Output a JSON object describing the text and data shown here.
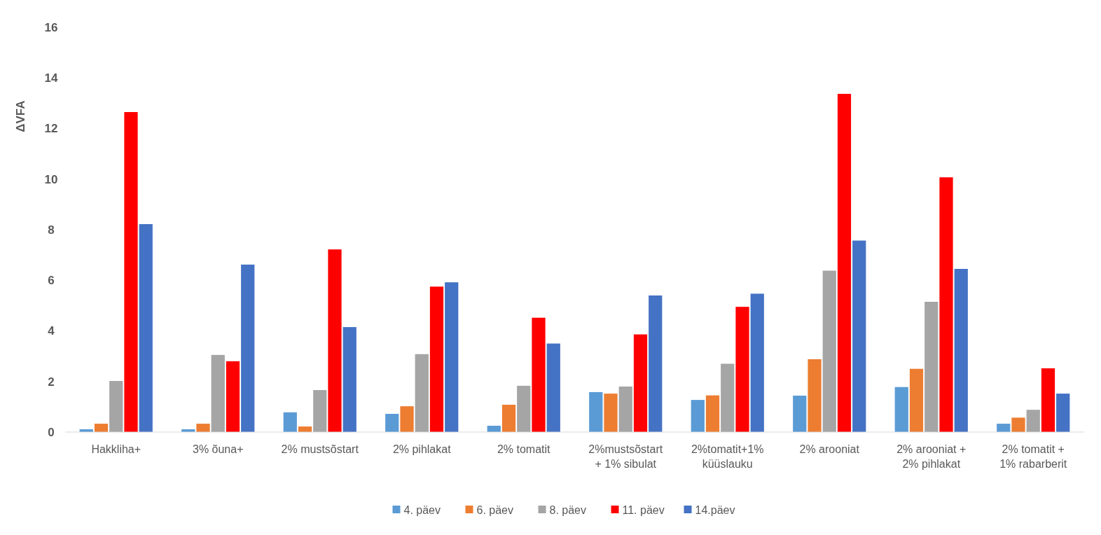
{
  "chart_data": {
    "type": "bar",
    "ylabel": "ΔVFA",
    "categories": [
      "Hakkliha+",
      "3% õuna+",
      "2% mustsõstart",
      "2% pihlakat",
      "2% tomatit",
      "2%mustsõstart + 1% sibulat",
      "2%tomatit+1% küüslauku",
      "2% arooniat",
      "2% arooniat + 2% pihlakat",
      "2% tomatit + 1% rabarberit"
    ],
    "series": [
      {
        "name": "4. päev",
        "color": "#5b9bd5",
        "values": [
          0.11,
          0.11,
          0.78,
          0.72,
          0.25,
          1.58,
          1.27,
          1.44,
          1.78,
          0.33
        ]
      },
      {
        "name": "6. päev",
        "color": "#ed7d31",
        "values": [
          0.33,
          0.33,
          0.22,
          1.02,
          1.08,
          1.52,
          1.45,
          2.88,
          2.5,
          0.57
        ]
      },
      {
        "name": "8. päev",
        "color": "#a5a5a5",
        "values": [
          2.02,
          3.05,
          1.66,
          3.08,
          1.83,
          1.8,
          2.7,
          6.38,
          5.15,
          0.88
        ]
      },
      {
        "name": "11. päev",
        "color": "#ff0000",
        "values": [
          12.65,
          2.8,
          7.22,
          5.75,
          4.52,
          3.86,
          4.95,
          13.37,
          10.07,
          2.52
        ]
      },
      {
        "name": "14.päev",
        "color": "#4472c4",
        "values": [
          8.22,
          6.62,
          4.15,
          5.92,
          3.5,
          5.4,
          5.47,
          7.57,
          6.45,
          1.52
        ]
      }
    ],
    "ylim": [
      0,
      16
    ],
    "yticks": [
      0,
      2,
      4,
      6,
      8,
      10,
      12,
      14,
      16
    ],
    "grid": false,
    "legend": "bottom"
  }
}
